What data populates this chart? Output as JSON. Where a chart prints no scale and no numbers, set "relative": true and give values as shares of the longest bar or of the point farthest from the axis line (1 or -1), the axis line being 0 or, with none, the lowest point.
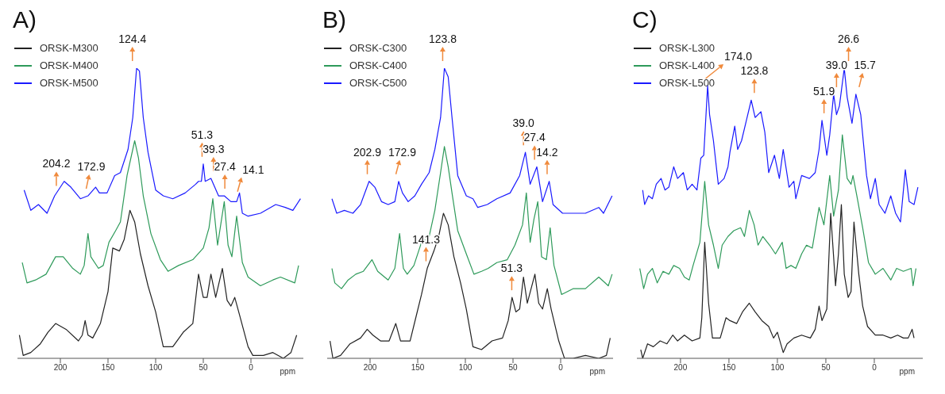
{
  "chart_data": [
    {
      "type": "line",
      "title": "A)",
      "xlabel": "ppm",
      "relative": true,
      "legend": "top left",
      "xlim": [
        245,
        -55
      ],
      "xticks": [
        200,
        150,
        100,
        50,
        0
      ],
      "series": [
        {
          "name": "ORSK-M300",
          "color": "#222222",
          "x": [
            243,
            239,
            231,
            221,
            213,
            205,
            194,
            181,
            177,
            174,
            171,
            166,
            158,
            150,
            145,
            138,
            133,
            127,
            122,
            116,
            108,
            100,
            92,
            82,
            71,
            61,
            55,
            50,
            46,
            42,
            37,
            30,
            25,
            21,
            17,
            12,
            3,
            -2,
            -13,
            -23,
            -34,
            -42,
            -48
          ],
          "values": [
            0.08,
            0.01,
            0.02,
            0.05,
            0.09,
            0.12,
            0.1,
            0.06,
            0.08,
            0.13,
            0.08,
            0.07,
            0.12,
            0.23,
            0.38,
            0.37,
            0.41,
            0.51,
            0.47,
            0.36,
            0.25,
            0.16,
            0.04,
            0.04,
            0.09,
            0.12,
            0.29,
            0.21,
            0.21,
            0.29,
            0.21,
            0.31,
            0.2,
            0.18,
            0.21,
            0.15,
            0.04,
            0.01,
            0.01,
            0.02,
            0,
            0.02,
            0.08
          ]
        },
        {
          "name": "ORSK-M400",
          "color": "#2e9a5a",
          "x": [
            240,
            235,
            226,
            215,
            205,
            197,
            187,
            179,
            175,
            171,
            168,
            160,
            155,
            149,
            142,
            137,
            130,
            122,
            118,
            113,
            105,
            95,
            87,
            76,
            61,
            50,
            44,
            40,
            35,
            28,
            24,
            20,
            15,
            9,
            3,
            -10,
            -23,
            -31,
            -46,
            -50
          ],
          "values": [
            0.33,
            0.26,
            0.27,
            0.29,
            0.35,
            0.35,
            0.31,
            0.29,
            0.32,
            0.43,
            0.35,
            0.31,
            0.32,
            0.4,
            0.44,
            0.47,
            0.63,
            0.75,
            0.69,
            0.56,
            0.43,
            0.34,
            0.3,
            0.32,
            0.34,
            0.38,
            0.45,
            0.55,
            0.39,
            0.54,
            0.39,
            0.35,
            0.49,
            0.33,
            0.28,
            0.25,
            0.27,
            0.28,
            0.26,
            0.32
          ]
        },
        {
          "name": "ORSK-M500",
          "color": "#1a1aff",
          "x": [
            238,
            231,
            223,
            214,
            206,
            196,
            189,
            179,
            171,
            163,
            159,
            151,
            143,
            137,
            129,
            124,
            120,
            117,
            113,
            108,
            100,
            92,
            82,
            69,
            58,
            55,
            52,
            50,
            48,
            42,
            34,
            28,
            21,
            15,
            12,
            9,
            3,
            -10,
            -26,
            -36,
            -44,
            -52
          ],
          "values": [
            0.58,
            0.51,
            0.53,
            0.5,
            0.56,
            0.61,
            0.59,
            0.55,
            0.56,
            0.59,
            0.57,
            0.57,
            0.63,
            0.64,
            0.72,
            0.83,
            1,
            0.99,
            0.83,
            0.71,
            0.58,
            0.56,
            0.55,
            0.57,
            0.6,
            0.61,
            0.61,
            0.67,
            0.61,
            0.62,
            0.56,
            0.56,
            0.54,
            0.54,
            0.57,
            0.5,
            0.49,
            0.5,
            0.53,
            0.52,
            0.51,
            0.55
          ]
        }
      ],
      "annotations": [
        {
          "text": "124.4",
          "x": 124.4,
          "y": 1
        },
        {
          "text": "204.2",
          "x": 204.2,
          "y": 0.57
        },
        {
          "text": "172.9",
          "x": 172.9,
          "y": 0.56
        },
        {
          "text": "51.3",
          "x": 51.3,
          "y": 0.67
        },
        {
          "text": "39.3",
          "x": 39.3,
          "y": 0.62
        },
        {
          "text": "27.4",
          "x": 27.4,
          "y": 0.56
        },
        {
          "text": "14.1",
          "x": 14.1,
          "y": 0.55
        }
      ]
    },
    {
      "type": "line",
      "title": "B)",
      "xlabel": "ppm",
      "relative": true,
      "legend": "top left",
      "xlim": [
        245,
        -55
      ],
      "xticks": [
        200,
        150,
        100,
        50,
        0
      ],
      "series": [
        {
          "name": "ORSK-C300",
          "color": "#222222",
          "x": [
            242,
            239,
            231,
            221,
            210,
            203,
            197,
            189,
            180,
            173,
            168,
            158,
            152,
            146,
            140,
            133,
            128,
            123,
            118,
            112,
            105,
            99,
            92,
            83,
            72,
            61,
            55,
            51,
            47,
            43,
            39,
            35,
            27,
            23,
            19,
            14,
            10,
            2,
            -4,
            -13,
            -26,
            -40,
            -48,
            -52
          ],
          "values": [
            0.06,
            0,
            0.01,
            0.05,
            0.07,
            0.1,
            0.08,
            0.06,
            0.06,
            0.12,
            0.06,
            0.06,
            0.14,
            0.22,
            0.31,
            0.37,
            0.42,
            0.5,
            0.46,
            0.35,
            0.26,
            0.17,
            0.04,
            0.03,
            0.06,
            0.07,
            0.13,
            0.21,
            0.16,
            0.17,
            0.28,
            0.19,
            0.29,
            0.19,
            0.17,
            0.24,
            0.17,
            0.06,
            0,
            0,
            0.01,
            0,
            0.01,
            0.07
          ]
        },
        {
          "name": "ORSK-C400",
          "color": "#2e9a5a",
          "x": [
            240,
            237,
            230,
            223,
            215,
            207,
            198,
            192,
            181,
            174,
            169,
            165,
            161,
            154,
            146,
            138,
            132,
            126,
            122,
            118,
            114,
            108,
            99,
            91,
            83,
            76,
            67,
            56,
            48,
            40,
            36,
            32,
            28,
            24,
            20,
            15,
            11,
            7,
            -1,
            -13,
            -26,
            -40,
            -50,
            -54
          ],
          "values": [
            0.31,
            0.26,
            0.24,
            0.27,
            0.29,
            0.3,
            0.34,
            0.3,
            0.27,
            0.31,
            0.43,
            0.31,
            0.29,
            0.32,
            0.4,
            0.42,
            0.51,
            0.64,
            0.73,
            0.66,
            0.57,
            0.44,
            0.36,
            0.29,
            0.3,
            0.31,
            0.33,
            0.34,
            0.39,
            0.46,
            0.57,
            0.4,
            0.48,
            0.54,
            0.35,
            0.34,
            0.45,
            0.32,
            0.22,
            0.24,
            0.24,
            0.28,
            0.25,
            0.29
          ]
        },
        {
          "name": "ORSK-C500",
          "color": "#1a1aff",
          "x": [
            240,
            235,
            227,
            218,
            210,
            201,
            195,
            188,
            181,
            174,
            170,
            166,
            160,
            153,
            146,
            138,
            132,
            126,
            122,
            118,
            114,
            108,
            99,
            92,
            87,
            77,
            67,
            53,
            43,
            37,
            32,
            25,
            19,
            12,
            8,
            -2,
            -13,
            -26,
            -40,
            -45,
            -54
          ],
          "values": [
            0.55,
            0.5,
            0.51,
            0.5,
            0.53,
            0.61,
            0.59,
            0.54,
            0.53,
            0.54,
            0.61,
            0.57,
            0.54,
            0.56,
            0.6,
            0.64,
            0.72,
            0.83,
            1,
            0.97,
            0.83,
            0.63,
            0.56,
            0.55,
            0.52,
            0.53,
            0.55,
            0.57,
            0.63,
            0.71,
            0.6,
            0.66,
            0.54,
            0.61,
            0.53,
            0.5,
            0.5,
            0.5,
            0.52,
            0.5,
            0.56
          ]
        }
      ],
      "annotations": [
        {
          "text": "123.8",
          "x": 123.8,
          "y": 1
        },
        {
          "text": "202.9",
          "x": 202.9,
          "y": 0.61
        },
        {
          "text": "172.9",
          "x": 172.9,
          "y": 0.61
        },
        {
          "text": "39.0",
          "x": 39.0,
          "y": 0.71
        },
        {
          "text": "27.4",
          "x": 27.4,
          "y": 0.66
        },
        {
          "text": "14.2",
          "x": 14.2,
          "y": 0.61
        },
        {
          "text": "141.3",
          "x": 141.3,
          "y": 0.31
        },
        {
          "text": "51.3",
          "x": 51.3,
          "y": 0.21
        }
      ]
    },
    {
      "type": "line",
      "title": "C)",
      "xlabel": "ppm",
      "relative": true,
      "legend": "top left",
      "xlim": [
        245,
        -50
      ],
      "xticks": [
        200,
        150,
        100,
        50,
        0
      ],
      "series": [
        {
          "name": "ORSK-L300",
          "color": "#222222",
          "x": [
            241,
            239,
            234,
            228,
            221,
            214,
            208,
            203,
            196,
            188,
            180,
            178,
            175,
            171,
            167,
            159,
            153,
            149,
            142,
            136,
            129,
            123,
            116,
            109,
            104,
            100,
            94,
            90,
            83,
            75,
            66,
            61,
            57,
            54,
            49,
            45,
            40,
            37,
            34,
            31,
            27,
            24,
            21,
            16,
            12,
            7,
            -1,
            -9,
            -17,
            -24,
            -30,
            -35,
            -39,
            -41
          ],
          "values": [
            0.03,
            0,
            0.05,
            0.04,
            0.06,
            0.05,
            0.08,
            0.06,
            0.08,
            0.06,
            0.07,
            0.14,
            0.4,
            0.19,
            0.07,
            0.07,
            0.14,
            0.13,
            0.12,
            0.16,
            0.19,
            0.16,
            0.13,
            0.11,
            0.07,
            0.09,
            0.02,
            0.05,
            0.07,
            0.08,
            0.07,
            0.1,
            0.18,
            0.13,
            0.17,
            0.5,
            0.25,
            0.36,
            0.53,
            0.29,
            0.21,
            0.23,
            0.47,
            0.29,
            0.18,
            0.11,
            0.08,
            0.08,
            0.07,
            0.08,
            0.07,
            0.07,
            0.1,
            0.07
          ]
        },
        {
          "name": "ORSK-L400",
          "color": "#2e9a5a",
          "x": [
            242,
            238,
            234,
            229,
            224,
            218,
            212,
            207,
            201,
            196,
            191,
            187,
            180,
            175,
            171,
            166,
            161,
            157,
            151,
            145,
            138,
            134,
            129,
            124,
            120,
            115,
            108,
            102,
            95,
            91,
            86,
            81,
            75,
            70,
            64,
            57,
            52,
            46,
            42,
            37,
            33,
            28,
            24,
            22,
            18,
            12,
            6,
            -1,
            -9,
            -17,
            -23,
            -30,
            -38,
            -40,
            -43
          ],
          "values": [
            0.31,
            0.24,
            0.29,
            0.31,
            0.26,
            0.3,
            0.29,
            0.32,
            0.31,
            0.28,
            0.27,
            0.32,
            0.4,
            0.61,
            0.46,
            0.39,
            0.31,
            0.39,
            0.42,
            0.44,
            0.45,
            0.42,
            0.51,
            0.46,
            0.39,
            0.42,
            0.39,
            0.36,
            0.4,
            0.31,
            0.32,
            0.31,
            0.36,
            0.39,
            0.38,
            0.52,
            0.46,
            0.63,
            0.49,
            0.58,
            0.77,
            0.62,
            0.6,
            0.63,
            0.56,
            0.45,
            0.33,
            0.29,
            0.31,
            0.27,
            0.31,
            0.3,
            0.31,
            0.25,
            0.31
          ]
        },
        {
          "name": "ORSK-L500",
          "color": "#1a1aff",
          "x": [
            239,
            237,
            233,
            229,
            225,
            220,
            216,
            212,
            207,
            203,
            197,
            193,
            188,
            183,
            179,
            176,
            172,
            170,
            166,
            161,
            155,
            151,
            149,
            144,
            141,
            137,
            132,
            127,
            123,
            117,
            113,
            109,
            103,
            98,
            94,
            88,
            83,
            81,
            75,
            67,
            61,
            57,
            54,
            49,
            46,
            42,
            39,
            36,
            31,
            28,
            23,
            19,
            14,
            8,
            4,
            -1,
            -5,
            -11,
            -17,
            -22,
            -27,
            -32,
            -36,
            -41,
            -45
          ],
          "values": [
            0.58,
            0.53,
            0.56,
            0.55,
            0.6,
            0.62,
            0.58,
            0.59,
            0.66,
            0.62,
            0.64,
            0.58,
            0.6,
            0.58,
            0.69,
            0.7,
            0.94,
            0.84,
            0.75,
            0.6,
            0.62,
            0.66,
            0.71,
            0.8,
            0.72,
            0.75,
            0.82,
            0.89,
            0.83,
            0.85,
            0.78,
            0.64,
            0.7,
            0.62,
            0.72,
            0.59,
            0.61,
            0.55,
            0.63,
            0.62,
            0.64,
            0.72,
            0.82,
            0.7,
            0.77,
            0.91,
            0.84,
            0.87,
            1,
            0.9,
            0.81,
            0.91,
            0.84,
            0.63,
            0.55,
            0.62,
            0.53,
            0.5,
            0.56,
            0.5,
            0.47,
            0.65,
            0.54,
            0.53,
            0.59
          ]
        }
      ],
      "annotations": [
        {
          "text": "174.0",
          "x": 174.0,
          "y": 0.94
        },
        {
          "text": "123.8",
          "x": 123.8,
          "y": 0.89
        },
        {
          "text": "51.9",
          "x": 51.9,
          "y": 0.82
        },
        {
          "text": "39.0",
          "x": 39.0,
          "y": 0.91
        },
        {
          "text": "26.6",
          "x": 26.6,
          "y": 1
        },
        {
          "text": "15.7",
          "x": 15.7,
          "y": 0.91
        }
      ]
    }
  ]
}
